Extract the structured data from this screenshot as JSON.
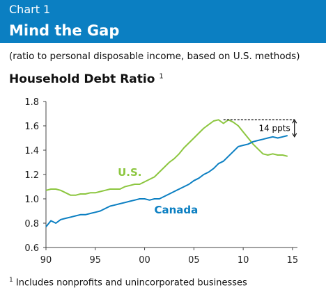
{
  "header": {
    "label": "Chart 1",
    "title": "Mind the Gap"
  },
  "subtitle": "(ratio to personal disposable income, based on U.S. methods)",
  "chart_title": {
    "text": "Household Debt Ratio",
    "superscript": "1"
  },
  "footnote": {
    "marker": "1",
    "text": "Includes nonprofits and unincorporated businesses"
  },
  "colors": {
    "header_bg": "#0b7fc2",
    "us_line": "#8cc63f",
    "canada_line": "#0b7fc2",
    "axis": "#444444"
  },
  "chart_data": {
    "type": "line",
    "title": "Household Debt Ratio",
    "xlabel": "",
    "ylabel": "",
    "xlim": [
      1990,
      2015.5
    ],
    "ylim": [
      0.6,
      1.8
    ],
    "x_ticks": [
      "90",
      "95",
      "00",
      "05",
      "10",
      "15"
    ],
    "x_tick_values": [
      1990,
      1995,
      2000,
      2005,
      2010,
      2015
    ],
    "y_ticks": [
      "0.6",
      "0.8",
      "1.0",
      "1.2",
      "1.4",
      "1.6",
      "1.8"
    ],
    "y_tick_values": [
      0.6,
      0.8,
      1.0,
      1.2,
      1.4,
      1.6,
      1.8
    ],
    "grid": false,
    "series": [
      {
        "name": "U.S.",
        "color": "#8cc63f",
        "x": [
          1990,
          1990.5,
          1991,
          1991.5,
          1992,
          1992.5,
          1993,
          1993.5,
          1994,
          1994.5,
          1995,
          1995.5,
          1996,
          1996.5,
          1997,
          1997.5,
          1998,
          1998.5,
          1999,
          1999.5,
          2000,
          2000.5,
          2001,
          2001.5,
          2002,
          2002.5,
          2003,
          2003.5,
          2004,
          2004.5,
          2005,
          2005.5,
          2006,
          2006.5,
          2007,
          2007.5,
          2008,
          2008.5,
          2009,
          2009.5,
          2010,
          2010.5,
          2011,
          2011.5,
          2012,
          2012.5,
          2013,
          2013.5,
          2014,
          2014.5
        ],
        "values": [
          1.07,
          1.08,
          1.08,
          1.07,
          1.05,
          1.03,
          1.03,
          1.04,
          1.04,
          1.05,
          1.05,
          1.06,
          1.07,
          1.08,
          1.08,
          1.08,
          1.1,
          1.11,
          1.12,
          1.12,
          1.14,
          1.16,
          1.18,
          1.22,
          1.26,
          1.3,
          1.33,
          1.37,
          1.42,
          1.46,
          1.5,
          1.54,
          1.58,
          1.61,
          1.64,
          1.65,
          1.62,
          1.65,
          1.63,
          1.6,
          1.55,
          1.5,
          1.45,
          1.41,
          1.37,
          1.36,
          1.37,
          1.36,
          1.36,
          1.35
        ]
      },
      {
        "name": "Canada",
        "color": "#0b7fc2",
        "x": [
          1990,
          1990.5,
          1991,
          1991.5,
          1992,
          1992.5,
          1993,
          1993.5,
          1994,
          1994.5,
          1995,
          1995.5,
          1996,
          1996.5,
          1997,
          1997.5,
          1998,
          1998.5,
          1999,
          1999.5,
          2000,
          2000.5,
          2001,
          2001.5,
          2002,
          2002.5,
          2003,
          2003.5,
          2004,
          2004.5,
          2005,
          2005.5,
          2006,
          2006.5,
          2007,
          2007.5,
          2008,
          2008.5,
          2009,
          2009.5,
          2010,
          2010.5,
          2011,
          2011.5,
          2012,
          2012.5,
          2013,
          2013.5,
          2014,
          2014.5
        ],
        "values": [
          0.77,
          0.82,
          0.8,
          0.83,
          0.84,
          0.85,
          0.86,
          0.87,
          0.87,
          0.88,
          0.89,
          0.9,
          0.92,
          0.94,
          0.95,
          0.96,
          0.97,
          0.98,
          0.99,
          1.0,
          1.0,
          0.99,
          1.0,
          1.0,
          1.02,
          1.04,
          1.06,
          1.08,
          1.1,
          1.12,
          1.15,
          1.17,
          1.2,
          1.22,
          1.25,
          1.29,
          1.31,
          1.35,
          1.39,
          1.43,
          1.44,
          1.45,
          1.47,
          1.48,
          1.49,
          1.5,
          1.51,
          1.5,
          1.51,
          1.52
        ]
      }
    ],
    "series_labels": [
      "U.S.",
      "Canada"
    ],
    "annotation": {
      "text": "14 ppts",
      "x": 2008,
      "y_top": 1.65,
      "y_bottom": 1.51
    }
  }
}
